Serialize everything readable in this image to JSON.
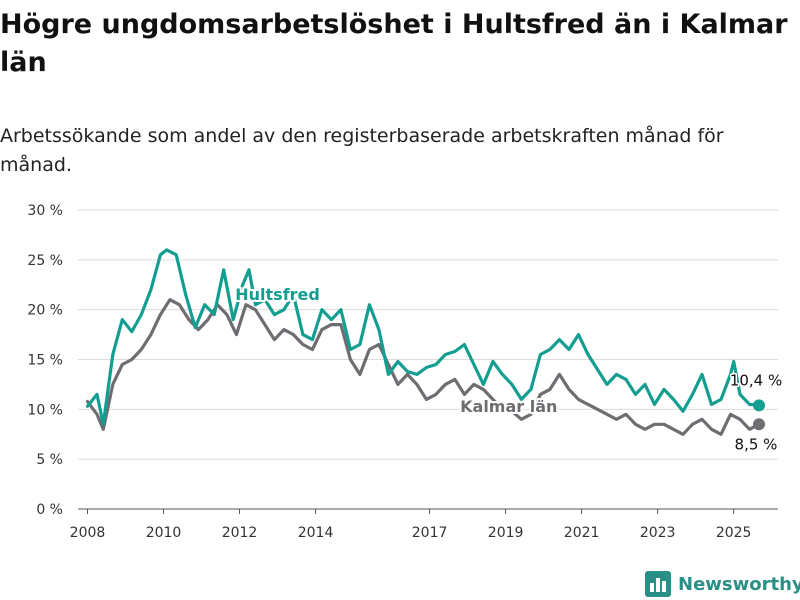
{
  "title": "Högre ungdomsarbetslöshet i Hultsfred än i Kalmar län",
  "subtitle": "Arbetssökande som andel av den registerbaserade arbetskraften månad för månad.",
  "logo": {
    "text": "Newsworthy",
    "icon": "bar-chart-logo-icon"
  },
  "colors": {
    "hultsfred": "#139e91",
    "kalmar": "#6f6c72",
    "grid": "#dcdcdc",
    "axis": "#555555"
  },
  "chart_data": {
    "type": "line",
    "ylim": [
      0,
      30
    ],
    "yticks": [
      0,
      5,
      10,
      15,
      20,
      25,
      30
    ],
    "ytick_labels": [
      "0 %",
      "5 %",
      "10 %",
      "15 %",
      "20 %",
      "25 %",
      "30 %"
    ],
    "xlim": [
      "2007-10",
      "2026-03"
    ],
    "xticks": [
      "2008-01",
      "2010-01",
      "2012-01",
      "2014-01",
      "2017-01",
      "2019-01",
      "2021-01",
      "2023-01",
      "2025-01"
    ],
    "xtick_labels": [
      "2008",
      "2010",
      "2012",
      "2014",
      "2017",
      "2019",
      "2021",
      "2023",
      "2025"
    ],
    "grid": true,
    "series": [
      {
        "name": "Hultsfred",
        "color": "#139e91",
        "end_label": "10,4 %",
        "points": [
          [
            "2008-01",
            10.3
          ],
          [
            "2008-04",
            11.5
          ],
          [
            "2008-06",
            8.5
          ],
          [
            "2008-09",
            15.5
          ],
          [
            "2008-12",
            19.0
          ],
          [
            "2009-03",
            17.8
          ],
          [
            "2009-06",
            19.5
          ],
          [
            "2009-09",
            22.0
          ],
          [
            "2009-12",
            25.5
          ],
          [
            "2010-02",
            26.0
          ],
          [
            "2010-05",
            25.5
          ],
          [
            "2010-08",
            21.5
          ],
          [
            "2010-11",
            18.2
          ],
          [
            "2011-02",
            20.5
          ],
          [
            "2011-05",
            19.5
          ],
          [
            "2011-08",
            24.0
          ],
          [
            "2011-11",
            19.0
          ],
          [
            "2012-02",
            22.5
          ],
          [
            "2012-04",
            24.0
          ],
          [
            "2012-06",
            20.5
          ],
          [
            "2012-09",
            21.0
          ],
          [
            "2012-12",
            19.5
          ],
          [
            "2013-03",
            20.0
          ],
          [
            "2013-06",
            21.5
          ],
          [
            "2013-09",
            17.5
          ],
          [
            "2013-12",
            17.0
          ],
          [
            "2014-03",
            20.0
          ],
          [
            "2014-06",
            19.0
          ],
          [
            "2014-09",
            20.0
          ],
          [
            "2014-12",
            16.0
          ],
          [
            "2015-03",
            16.5
          ],
          [
            "2015-06",
            20.5
          ],
          [
            "2015-09",
            18.0
          ],
          [
            "2015-12",
            13.5
          ],
          [
            "2016-03",
            14.8
          ],
          [
            "2016-06",
            13.8
          ],
          [
            "2016-09",
            13.5
          ],
          [
            "2016-12",
            14.2
          ],
          [
            "2017-03",
            14.5
          ],
          [
            "2017-06",
            15.5
          ],
          [
            "2017-09",
            15.8
          ],
          [
            "2017-12",
            16.5
          ],
          [
            "2018-03",
            14.5
          ],
          [
            "2018-06",
            12.5
          ],
          [
            "2018-09",
            14.8
          ],
          [
            "2018-12",
            13.5
          ],
          [
            "2019-03",
            12.5
          ],
          [
            "2019-06",
            11.0
          ],
          [
            "2019-09",
            12.0
          ],
          [
            "2019-12",
            15.5
          ],
          [
            "2020-03",
            16.0
          ],
          [
            "2020-06",
            17.0
          ],
          [
            "2020-09",
            16.0
          ],
          [
            "2020-12",
            17.5
          ],
          [
            "2021-03",
            15.5
          ],
          [
            "2021-06",
            14.0
          ],
          [
            "2021-09",
            12.5
          ],
          [
            "2021-12",
            13.5
          ],
          [
            "2022-03",
            13.0
          ],
          [
            "2022-06",
            11.5
          ],
          [
            "2022-09",
            12.5
          ],
          [
            "2022-12",
            10.5
          ],
          [
            "2023-03",
            12.0
          ],
          [
            "2023-06",
            11.0
          ],
          [
            "2023-09",
            9.8
          ],
          [
            "2023-12",
            11.5
          ],
          [
            "2024-03",
            13.5
          ],
          [
            "2024-06",
            10.5
          ],
          [
            "2024-09",
            11.0
          ],
          [
            "2024-12",
            13.5
          ],
          [
            "2025-01",
            14.8
          ],
          [
            "2025-03",
            11.5
          ],
          [
            "2025-06",
            10.5
          ],
          [
            "2025-09",
            10.4
          ]
        ]
      },
      {
        "name": "Kalmar län",
        "color": "#6f6c72",
        "end_label": "8,5 %",
        "points": [
          [
            "2008-01",
            10.8
          ],
          [
            "2008-04",
            9.5
          ],
          [
            "2008-06",
            8.0
          ],
          [
            "2008-09",
            12.5
          ],
          [
            "2008-12",
            14.5
          ],
          [
            "2009-03",
            15.0
          ],
          [
            "2009-06",
            16.0
          ],
          [
            "2009-09",
            17.5
          ],
          [
            "2009-12",
            19.5
          ],
          [
            "2010-03",
            21.0
          ],
          [
            "2010-06",
            20.5
          ],
          [
            "2010-09",
            19.0
          ],
          [
            "2010-12",
            18.0
          ],
          [
            "2011-03",
            19.0
          ],
          [
            "2011-06",
            20.5
          ],
          [
            "2011-09",
            19.5
          ],
          [
            "2011-12",
            17.5
          ],
          [
            "2012-03",
            20.5
          ],
          [
            "2012-06",
            20.0
          ],
          [
            "2012-09",
            18.5
          ],
          [
            "2012-12",
            17.0
          ],
          [
            "2013-03",
            18.0
          ],
          [
            "2013-06",
            17.5
          ],
          [
            "2013-09",
            16.5
          ],
          [
            "2013-12",
            16.0
          ],
          [
            "2014-03",
            18.0
          ],
          [
            "2014-06",
            18.5
          ],
          [
            "2014-09",
            18.5
          ],
          [
            "2014-12",
            15.0
          ],
          [
            "2015-03",
            13.5
          ],
          [
            "2015-06",
            16.0
          ],
          [
            "2015-09",
            16.5
          ],
          [
            "2015-12",
            14.5
          ],
          [
            "2016-03",
            12.5
          ],
          [
            "2016-06",
            13.5
          ],
          [
            "2016-09",
            12.5
          ],
          [
            "2016-12",
            11.0
          ],
          [
            "2017-03",
            11.5
          ],
          [
            "2017-06",
            12.5
          ],
          [
            "2017-09",
            13.0
          ],
          [
            "2017-12",
            11.5
          ],
          [
            "2018-03",
            12.5
          ],
          [
            "2018-06",
            12.0
          ],
          [
            "2018-09",
            11.0
          ],
          [
            "2018-12",
            10.0
          ],
          [
            "2019-03",
            9.8
          ],
          [
            "2019-06",
            9.0
          ],
          [
            "2019-09",
            9.5
          ],
          [
            "2019-12",
            11.5
          ],
          [
            "2020-03",
            12.0
          ],
          [
            "2020-06",
            13.5
          ],
          [
            "2020-09",
            12.0
          ],
          [
            "2020-12",
            11.0
          ],
          [
            "2021-03",
            10.5
          ],
          [
            "2021-06",
            10.0
          ],
          [
            "2021-09",
            9.5
          ],
          [
            "2021-12",
            9.0
          ],
          [
            "2022-03",
            9.5
          ],
          [
            "2022-06",
            8.5
          ],
          [
            "2022-09",
            8.0
          ],
          [
            "2022-12",
            8.5
          ],
          [
            "2023-03",
            8.5
          ],
          [
            "2023-06",
            8.0
          ],
          [
            "2023-09",
            7.5
          ],
          [
            "2023-12",
            8.5
          ],
          [
            "2024-03",
            9.0
          ],
          [
            "2024-06",
            8.0
          ],
          [
            "2024-09",
            7.5
          ],
          [
            "2024-12",
            9.5
          ],
          [
            "2025-03",
            9.0
          ],
          [
            "2025-06",
            8.0
          ],
          [
            "2025-09",
            8.5
          ]
        ]
      }
    ]
  }
}
